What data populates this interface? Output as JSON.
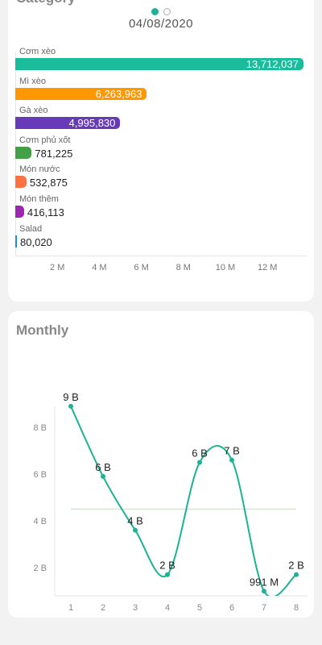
{
  "category": {
    "title": "Category",
    "date": "04/08/2020",
    "bars": [
      {
        "label": "Cơm xèo",
        "value": 13712037,
        "display": "13,712,037",
        "color": "#1abc9c",
        "inside": true
      },
      {
        "label": "Mì xèo",
        "value": 6263963,
        "display": "6,263,963",
        "color": "#ff9800",
        "inside": true
      },
      {
        "label": "Gà xèo",
        "value": 4995830,
        "display": "4,995,830",
        "color": "#673ab7",
        "inside": true
      },
      {
        "label": "Cơm phủ xốt",
        "value": 781225,
        "display": "781,225",
        "color": "#43a047",
        "inside": false
      },
      {
        "label": "Món nước",
        "value": 532875,
        "display": "532,875",
        "color": "#ff7043",
        "inside": false
      },
      {
        "label": "Món thêm",
        "value": 416113,
        "display": "416,113",
        "color": "#9c27b0",
        "inside": false
      },
      {
        "label": "Salad",
        "value": 80020,
        "display": "80,020",
        "color": "#1e88e5",
        "inside": false
      }
    ],
    "x_ticks": [
      "2 M",
      "4 M",
      "6 M",
      "8 M",
      "10 M",
      "12 M"
    ]
  },
  "monthly": {
    "title": "Monthly"
  },
  "chart_data": {
    "type": "line",
    "x": [
      1,
      2,
      3,
      4,
      5,
      6,
      7,
      8
    ],
    "values": [
      8.9,
      5.9,
      3.6,
      1.7,
      6.5,
      6.6,
      0.991,
      1.7
    ],
    "labels": [
      "9 B",
      "6 B",
      "4 B",
      "2 B",
      "6 B",
      "7 B",
      "991 M",
      "2 B"
    ],
    "average": 4.5,
    "y_ticks": [
      "2 B",
      "4 B",
      "6 B",
      "8 B"
    ],
    "x_ticks": [
      "1",
      "2",
      "3",
      "4",
      "5",
      "6",
      "7",
      "8"
    ],
    "color": "#1ab394",
    "average_color": "#cfe8cf"
  }
}
